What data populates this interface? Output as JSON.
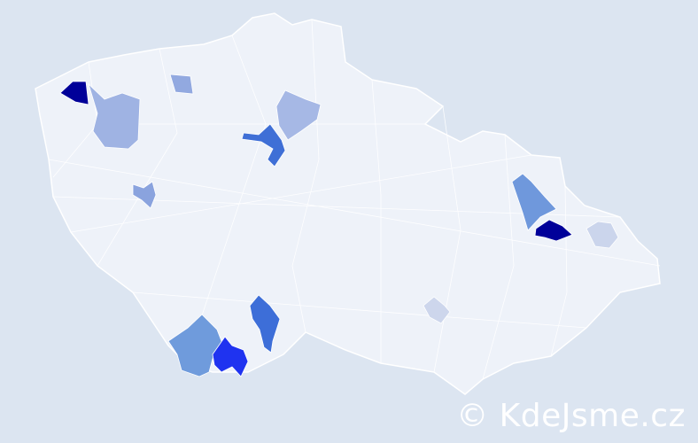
{
  "map": {
    "background_color": "#dce5f1",
    "land_color": "#eef2f9",
    "border_color": "#ffffff",
    "highlighted_regions": [
      {
        "id": "r1",
        "color": "#000099"
      },
      {
        "id": "r2",
        "color": "#9fb3e3"
      },
      {
        "id": "r3",
        "color": "#92a9e0"
      },
      {
        "id": "r4",
        "color": "#a6b8e5"
      },
      {
        "id": "r5",
        "color": "#3f6fd6"
      },
      {
        "id": "r6",
        "color": "#8aa3de"
      },
      {
        "id": "r7",
        "color": "#6f98dc"
      },
      {
        "id": "r8",
        "color": "#000099"
      },
      {
        "id": "r9",
        "color": "#cbd5ec"
      },
      {
        "id": "r10",
        "color": "#cdd6ec"
      },
      {
        "id": "r11",
        "color": "#3d6ed8"
      },
      {
        "id": "r12",
        "color": "#6f9bdc"
      },
      {
        "id": "r13",
        "color": "#1f33f0"
      }
    ]
  },
  "watermark": "© KdeJsme.cz"
}
